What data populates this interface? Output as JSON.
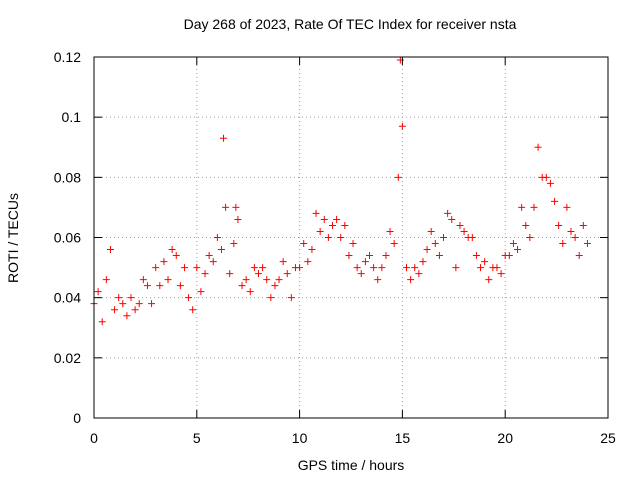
{
  "chart_data": {
    "type": "scatter",
    "title": "Day 268 of 2023, Rate Of TEC Index for receiver nsta",
    "xlabel": "GPS time / hours",
    "ylabel": "ROTI / TECUs",
    "xlim": [
      0,
      25
    ],
    "ylim": [
      0,
      0.12
    ],
    "x_ticks": [
      "0",
      "5",
      "10",
      "15",
      "20",
      "25"
    ],
    "y_ticks": [
      "0",
      "0.02",
      "0.04",
      "0.06",
      "0.08",
      "0.1",
      "0.12"
    ],
    "grid": true,
    "marker": "+",
    "color": "#ff0000",
    "series": [
      {
        "x": [
          0.0,
          0.2,
          0.4,
          0.6,
          0.8,
          1.0,
          1.2,
          1.4,
          1.6,
          1.8,
          2.0,
          2.2,
          2.4,
          2.6,
          2.8,
          3.0,
          3.2,
          3.4,
          3.6,
          3.8,
          4.0,
          4.2,
          4.4,
          4.6,
          4.8,
          5.0,
          5.2,
          5.4,
          5.6,
          5.8,
          6.0,
          6.2,
          6.3,
          6.4,
          6.6,
          6.8,
          6.9,
          7.0,
          7.2,
          7.4,
          7.6,
          7.8,
          8.0,
          8.2,
          8.4,
          8.6,
          8.8,
          9.0,
          9.2,
          9.4,
          9.6,
          9.8,
          10.0,
          10.2,
          10.4,
          10.6,
          10.8,
          11.0,
          11.2,
          11.4,
          11.6,
          11.8,
          12.0,
          12.2,
          12.4,
          12.6,
          12.8,
          13.0,
          13.2,
          13.4,
          13.6,
          13.8,
          14.0,
          14.2,
          14.4,
          14.6,
          14.8,
          14.9,
          15.0,
          15.2,
          15.4,
          15.6,
          15.8,
          16.0,
          16.2,
          16.4,
          16.6,
          16.8,
          17.0,
          17.2,
          17.4,
          17.6,
          17.8,
          18.0,
          18.2,
          18.4,
          18.6,
          18.8,
          19.0,
          19.2,
          19.4,
          19.6,
          19.8,
          20.0,
          20.2,
          20.4,
          20.6,
          20.8,
          21.0,
          21.2,
          21.4,
          21.6,
          21.8,
          22.0,
          22.2,
          22.4,
          22.6,
          22.8,
          23.0,
          23.2,
          23.4,
          23.6,
          23.8,
          24.0
        ],
        "y": [
          0.038,
          0.042,
          0.032,
          0.046,
          0.056,
          0.036,
          0.04,
          0.038,
          0.034,
          0.04,
          0.036,
          0.038,
          0.046,
          0.044,
          0.038,
          0.05,
          0.044,
          0.052,
          0.046,
          0.056,
          0.054,
          0.044,
          0.05,
          0.04,
          0.036,
          0.05,
          0.042,
          0.048,
          0.054,
          0.052,
          0.06,
          0.056,
          0.093,
          0.07,
          0.048,
          0.058,
          0.07,
          0.066,
          0.044,
          0.046,
          0.042,
          0.05,
          0.048,
          0.05,
          0.046,
          0.04,
          0.044,
          0.046,
          0.052,
          0.048,
          0.04,
          0.05,
          0.05,
          0.058,
          0.052,
          0.056,
          0.068,
          0.062,
          0.066,
          0.06,
          0.064,
          0.066,
          0.06,
          0.064,
          0.054,
          0.058,
          0.05,
          0.048,
          0.052,
          0.054,
          0.05,
          0.046,
          0.05,
          0.054,
          0.062,
          0.058,
          0.08,
          0.119,
          0.097,
          0.05,
          0.046,
          0.05,
          0.048,
          0.052,
          0.056,
          0.062,
          0.058,
          0.054,
          0.06,
          0.068,
          0.066,
          0.05,
          0.064,
          0.062,
          0.06,
          0.06,
          0.054,
          0.05,
          0.052,
          0.046,
          0.05,
          0.05,
          0.048,
          0.054,
          0.054,
          0.058,
          0.056,
          0.07,
          0.064,
          0.06,
          0.07,
          0.09,
          0.08,
          0.08,
          0.078,
          0.072,
          0.064,
          0.058,
          0.07,
          0.062,
          0.06,
          0.054,
          0.064,
          0.058
        ]
      }
    ]
  }
}
